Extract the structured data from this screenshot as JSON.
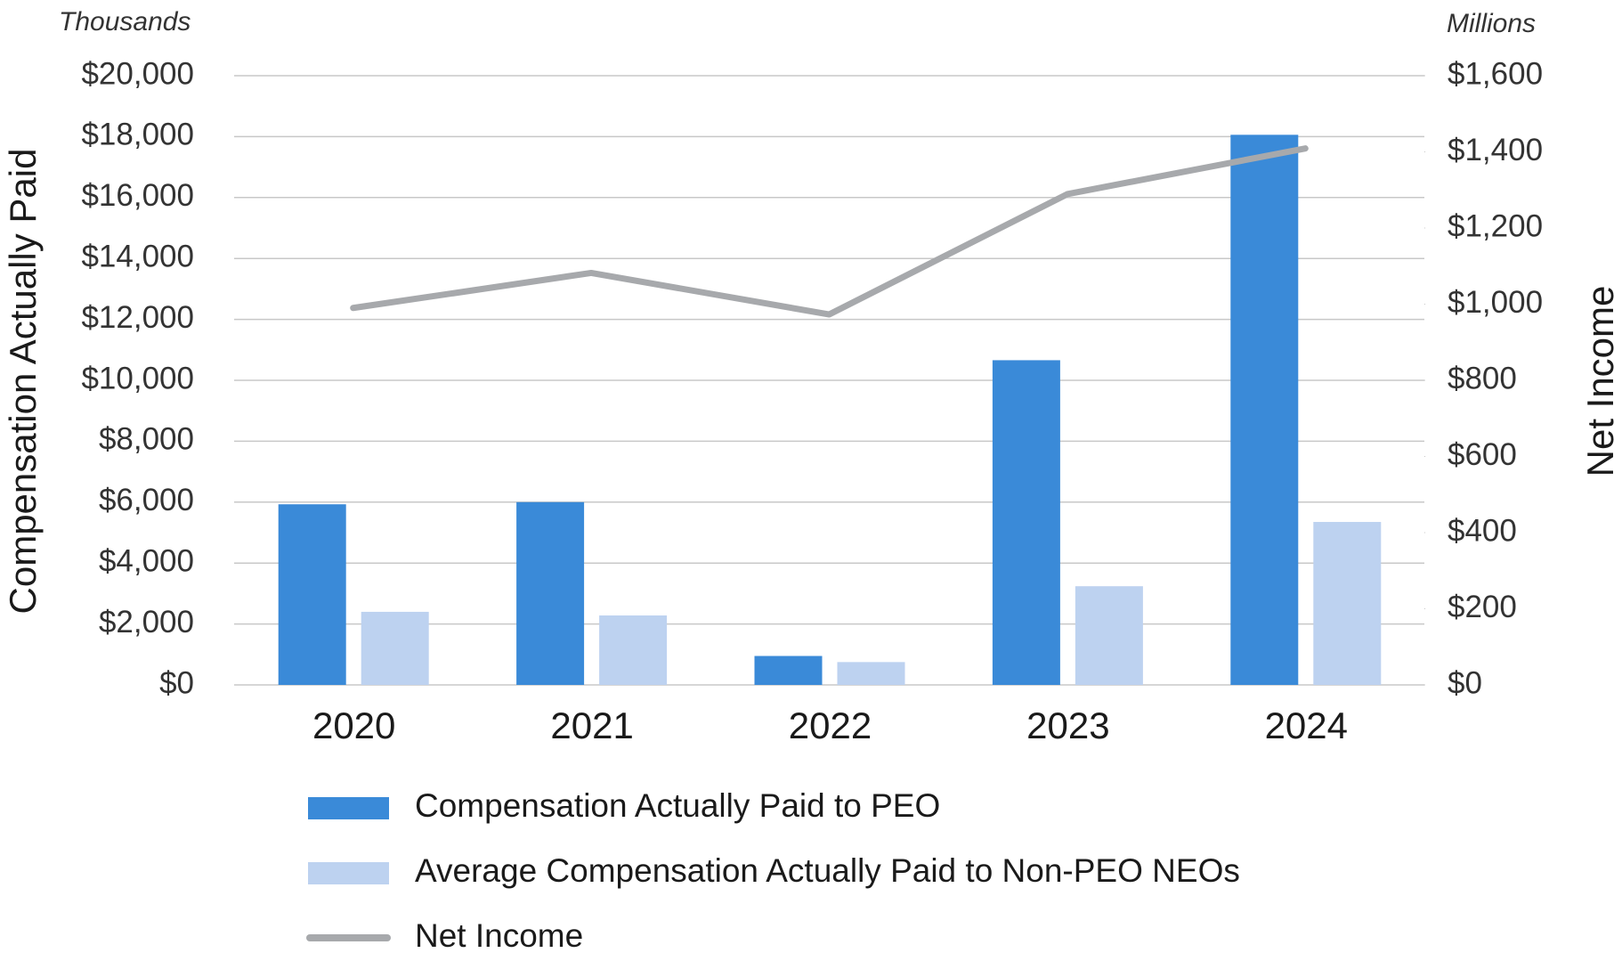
{
  "chart_data": {
    "type": "bar_line",
    "y_unit": "Thousands",
    "y2_unit": "Millions",
    "ylabel": "Compensation Actually Paid",
    "y2label": "Net Income",
    "categories": [
      "2020",
      "2021",
      "2022",
      "2023",
      "2024"
    ],
    "series": [
      {
        "name": "Compensation Actually Paid to PEO",
        "type": "bar",
        "color": "#3a8ad8",
        "values": [
          5930,
          6000,
          950,
          10660,
          18060
        ]
      },
      {
        "name": "Average Compensation Actually Paid to Non-PEO NEOs",
        "type": "bar",
        "color": "#bdd2f0",
        "values": [
          2400,
          2280,
          750,
          3240,
          5350
        ]
      },
      {
        "name": "Net Income",
        "type": "line",
        "axis": "y2",
        "color": "#a7a9ac",
        "values": [
          990,
          1082,
          973,
          1289,
          1409
        ]
      }
    ],
    "ylim": [
      0,
      20000
    ],
    "yticks": [
      {
        "value": 0,
        "label": "$0"
      },
      {
        "value": 2000,
        "label": "$2,000"
      },
      {
        "value": 4000,
        "label": "$4,000"
      },
      {
        "value": 6000,
        "label": "$6,000"
      },
      {
        "value": 8000,
        "label": "$8,000"
      },
      {
        "value": 10000,
        "label": "$10,000"
      },
      {
        "value": 12000,
        "label": "$12,000"
      },
      {
        "value": 14000,
        "label": "$14,000"
      },
      {
        "value": 16000,
        "label": "$16,000"
      },
      {
        "value": 18000,
        "label": "$18,000"
      },
      {
        "value": 20000,
        "label": "$20,000"
      }
    ],
    "y2lim": [
      0,
      1600
    ],
    "y2ticks": [
      {
        "value": 0,
        "label": "$0"
      },
      {
        "value": 200,
        "label": "$200"
      },
      {
        "value": 400,
        "label": "$400"
      },
      {
        "value": 600,
        "label": "$600"
      },
      {
        "value": 800,
        "label": "$800"
      },
      {
        "value": 1000,
        "label": "$1,000"
      },
      {
        "value": 1200,
        "label": "$1,200"
      },
      {
        "value": 1400,
        "label": "$1,400"
      },
      {
        "value": 1600,
        "label": "$1,600"
      }
    ],
    "grid": true
  }
}
